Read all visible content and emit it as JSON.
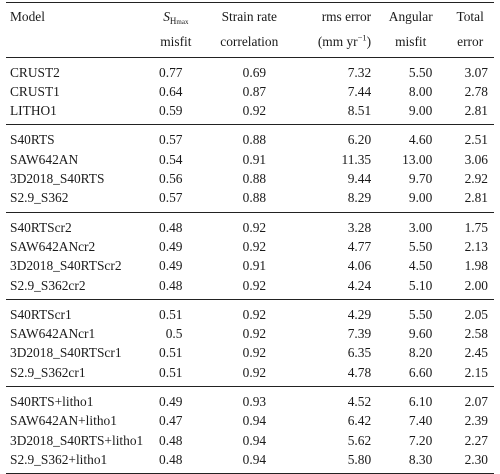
{
  "table": {
    "headers": {
      "model": "Model",
      "sh_symbol": "S",
      "sh_sub": "H",
      "sh_subsub": "max",
      "sh_line2": "misfit",
      "strain_line1": "Strain rate",
      "strain_line2": "correlation",
      "rms_line1": "rms error",
      "rms_line2_pre": "(mm yr",
      "rms_line2_sup": "−1",
      "rms_line2_post": ")",
      "angular_line1": "Angular",
      "angular_line2": "misfit",
      "total_line1": "Total",
      "total_line2": "error"
    },
    "groups": [
      {
        "rows": [
          {
            "model": "CRUST2",
            "sh": "0.77",
            "strain": "0.69",
            "rms": "7.32",
            "angular": "5.50",
            "total": "3.07"
          },
          {
            "model": "CRUST1",
            "sh": "0.64",
            "strain": "0.87",
            "rms": "7.44",
            "angular": "8.00",
            "total": "2.78"
          },
          {
            "model": "LITHO1",
            "sh": "0.59",
            "strain": "0.92",
            "rms": "8.51",
            "angular": "9.00",
            "total": "2.81"
          }
        ]
      },
      {
        "rows": [
          {
            "model": "S40RTS",
            "sh": "0.57",
            "strain": "0.88",
            "rms": "6.20",
            "angular": "4.60",
            "total": "2.51"
          },
          {
            "model": "SAW642AN",
            "sh": "0.54",
            "strain": "0.91",
            "rms": "11.35",
            "angular": "13.00",
            "total": "3.06"
          },
          {
            "model": "3D2018_S40RTS",
            "sh": "0.56",
            "strain": "0.88",
            "rms": "9.44",
            "angular": "9.70",
            "total": "2.92"
          },
          {
            "model": "S2.9_S362",
            "sh": "0.57",
            "strain": "0.88",
            "rms": "8.29",
            "angular": "9.00",
            "total": "2.81"
          }
        ]
      },
      {
        "rows": [
          {
            "model": "S40RTScr2",
            "sh": "0.48",
            "strain": "0.92",
            "rms": "3.28",
            "angular": "3.00",
            "total": "1.75"
          },
          {
            "model": "SAW642ANcr2",
            "sh": "0.49",
            "strain": "0.92",
            "rms": "4.77",
            "angular": "5.50",
            "total": "2.13"
          },
          {
            "model": "3D2018_S40RTScr2",
            "sh": "0.49",
            "strain": "0.91",
            "rms": "4.06",
            "angular": "4.50",
            "total": "1.98"
          },
          {
            "model": "S2.9_S362cr2",
            "sh": "0.48",
            "strain": "0.92",
            "rms": "4.24",
            "angular": "5.10",
            "total": "2.00"
          }
        ]
      },
      {
        "rows": [
          {
            "model": "S40RTScr1",
            "sh": "0.51",
            "strain": "0.92",
            "rms": "4.29",
            "angular": "5.50",
            "total": "2.05"
          },
          {
            "model": "SAW642ANcr1",
            "sh": "0.5",
            "strain": "0.92",
            "rms": "7.39",
            "angular": "9.60",
            "total": "2.58"
          },
          {
            "model": "3D2018_S40RTScr1",
            "sh": "0.51",
            "strain": "0.92",
            "rms": "6.35",
            "angular": "8.20",
            "total": "2.45"
          },
          {
            "model": "S2.9_S362cr1",
            "sh": "0.51",
            "strain": "0.92",
            "rms": "4.78",
            "angular": "6.60",
            "total": "2.15"
          }
        ]
      },
      {
        "rows": [
          {
            "model": "S40RTS+litho1",
            "sh": "0.49",
            "strain": "0.93",
            "rms": "4.52",
            "angular": "6.10",
            "total": "2.07"
          },
          {
            "model": "SAW642AN+litho1",
            "sh": "0.47",
            "strain": "0.94",
            "rms": "6.42",
            "angular": "7.40",
            "total": "2.39"
          },
          {
            "model": "3D2018_S40RTS+litho1",
            "sh": "0.48",
            "strain": "0.94",
            "rms": "5.62",
            "angular": "7.20",
            "total": "2.27"
          },
          {
            "model": "S2.9_S362+litho1",
            "sh": "0.48",
            "strain": "0.94",
            "rms": "5.80",
            "angular": "8.30",
            "total": "2.30"
          }
        ]
      }
    ]
  }
}
